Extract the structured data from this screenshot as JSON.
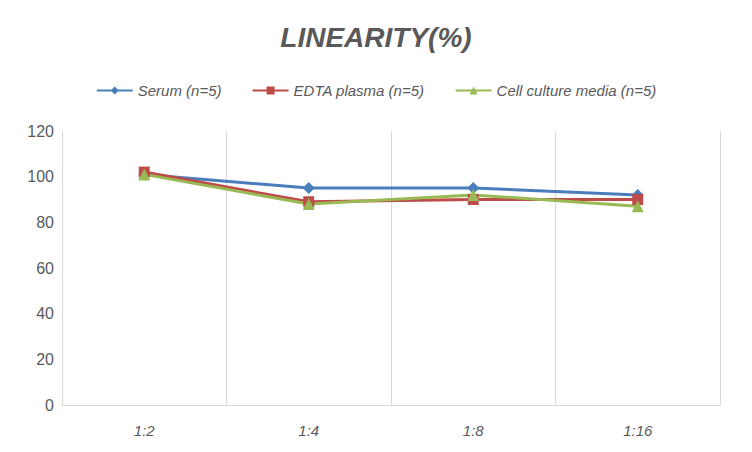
{
  "chart_data": {
    "type": "line",
    "title": "LINEARITY(%)",
    "categories": [
      "1:2",
      "1:4",
      "1:8",
      "1:16"
    ],
    "series": [
      {
        "name": "Serum (n=5)",
        "color": "#4a7ebb",
        "marker": "diamond",
        "line_style": "solid",
        "values": [
          101,
          95,
          95,
          92
        ]
      },
      {
        "name": "EDTA plasma (n=5)",
        "color": "#be4b48",
        "marker": "square",
        "line_style": "solid",
        "values": [
          102,
          89,
          90,
          90
        ]
      },
      {
        "name": "Cell culture media (n=5)",
        "color": "#98b954",
        "marker": "triangle",
        "line_style": "solid",
        "values": [
          101,
          88,
          92,
          87
        ]
      }
    ],
    "ylim": [
      0,
      120
    ],
    "yticks": [
      0,
      20,
      40,
      60,
      80,
      100,
      120
    ],
    "grid": true,
    "legend": "top"
  }
}
